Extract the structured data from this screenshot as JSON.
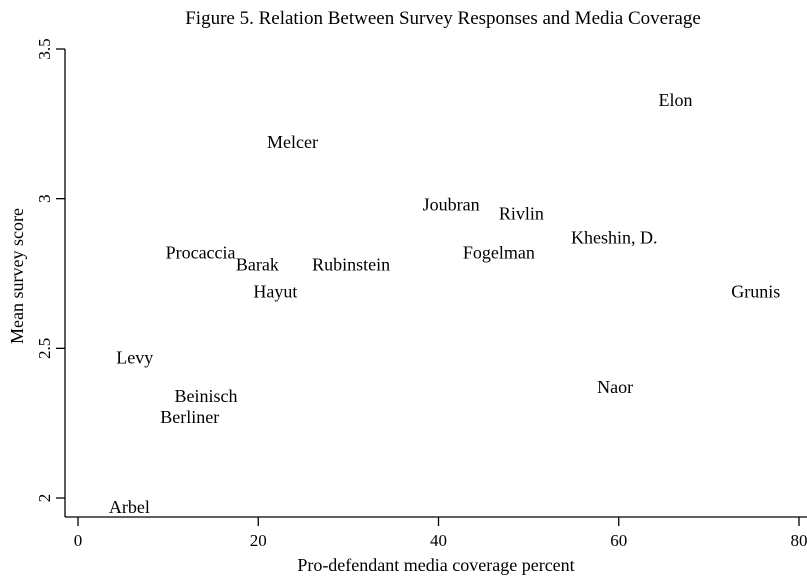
{
  "chart_data": {
    "type": "scatter",
    "title": "Figure 5. Relation Between Survey Responses and Media Coverage",
    "xlabel": "Pro-defendant media coverage percent",
    "ylabel": "Mean survey score",
    "xlim": [
      0,
      80
    ],
    "ylim": [
      2,
      3.5
    ],
    "xticks": [
      0,
      20,
      40,
      60,
      80
    ],
    "xtick_labels": [
      "0",
      "20",
      "40",
      "60",
      "80"
    ],
    "yticks": [
      2,
      2.5,
      3,
      3.5
    ],
    "ytick_labels": [
      "2",
      "2.5",
      "3",
      "3.5"
    ],
    "grid": false,
    "legend": "none",
    "marker": "text-label",
    "points": [
      {
        "label": "Elon",
        "x": 66.3,
        "y": 3.33
      },
      {
        "label": "Melcer",
        "x": 23.8,
        "y": 3.19
      },
      {
        "label": "Joubran",
        "x": 41.4,
        "y": 2.98
      },
      {
        "label": "Rivlin",
        "x": 49.2,
        "y": 2.95
      },
      {
        "label": "Kheshin, D.",
        "x": 59.5,
        "y": 2.87
      },
      {
        "label": "Fogelman",
        "x": 46.7,
        "y": 2.82
      },
      {
        "label": "Procaccia",
        "x": 13.6,
        "y": 2.82
      },
      {
        "label": "Barak",
        "x": 19.9,
        "y": 2.78
      },
      {
        "label": "Rubinstein",
        "x": 30.3,
        "y": 2.78
      },
      {
        "label": "Hayut",
        "x": 21.9,
        "y": 2.69
      },
      {
        "label": "Grunis",
        "x": 75.2,
        "y": 2.69
      },
      {
        "label": "Levy",
        "x": 6.3,
        "y": 2.47
      },
      {
        "label": "Naor",
        "x": 59.6,
        "y": 2.37
      },
      {
        "label": "Beinisch",
        "x": 14.2,
        "y": 2.34
      },
      {
        "label": "Berliner",
        "x": 12.4,
        "y": 2.27
      },
      {
        "label": "Arbel",
        "x": 5.7,
        "y": 1.97
      }
    ]
  }
}
